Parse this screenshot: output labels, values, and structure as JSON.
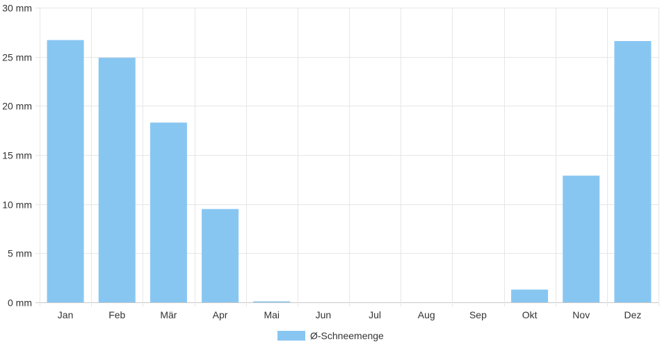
{
  "chart_data": {
    "type": "bar",
    "categories": [
      "Jan",
      "Feb",
      "Mär",
      "Apr",
      "Mai",
      "Jun",
      "Jul",
      "Aug",
      "Sep",
      "Okt",
      "Nov",
      "Dez"
    ],
    "series": [
      {
        "name": "Ø-Schneemenge",
        "values": [
          26.7,
          24.9,
          18.3,
          9.5,
          0.1,
          0,
          0,
          0,
          0,
          1.3,
          12.9,
          26.6
        ],
        "color": "#88c6f2"
      }
    ],
    "y_ticks": [
      "0 mm",
      "5 mm",
      "10 mm",
      "15 mm",
      "20 mm",
      "25 mm",
      "30 mm"
    ],
    "ylim": [
      0,
      30
    ],
    "y_unit": "mm",
    "grid": true,
    "legend_position": "bottom-center",
    "title": "",
    "xlabel": "",
    "ylabel": ""
  }
}
